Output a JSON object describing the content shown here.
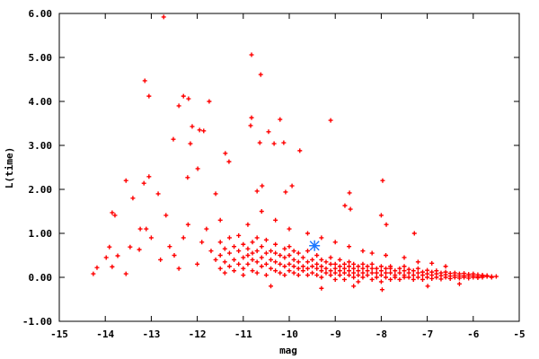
{
  "chart_data": {
    "type": "scatter",
    "title": "",
    "xlabel": "mag",
    "ylabel": "L(time)",
    "xlim": [
      -15,
      -5
    ],
    "ylim": [
      -1,
      6
    ],
    "grid": false,
    "x_ticks": [
      "-15",
      "-14",
      "-13",
      "-12",
      "-11",
      "-10",
      "-9",
      "-8",
      "-7",
      "-6",
      "-5"
    ],
    "y_ticks": [
      "-1.00",
      "0.00",
      "1.00",
      "2.00",
      "3.00",
      "4.00",
      "5.00",
      "6.00"
    ],
    "colors": {
      "main": "#ff0000",
      "highlight": "#1e78ff",
      "axis": "#000000"
    },
    "series": [
      {
        "marker": "plus",
        "color": "#ff0000",
        "points": [
          [
            -12.73,
            5.92
          ],
          [
            -13.14,
            4.47
          ],
          [
            -13.05,
            4.12
          ],
          [
            -10.82,
            5.06
          ],
          [
            -10.62,
            4.61
          ],
          [
            -12.3,
            4.12
          ],
          [
            -12.19,
            4.06
          ],
          [
            -12.4,
            3.9
          ],
          [
            -11.74,
            4.0
          ],
          [
            -12.52,
            3.14
          ],
          [
            -10.82,
            3.63
          ],
          [
            -10.84,
            3.45
          ],
          [
            -10.2,
            3.59
          ],
          [
            -10.45,
            3.31
          ],
          [
            -10.64,
            3.06
          ],
          [
            -10.33,
            3.04
          ],
          [
            -10.12,
            3.06
          ],
          [
            -9.77,
            2.88
          ],
          [
            -9.1,
            3.57
          ],
          [
            -12.11,
            3.43
          ],
          [
            -11.95,
            3.35
          ],
          [
            -11.86,
            3.33
          ],
          [
            -12.15,
            3.04
          ],
          [
            -11.31,
            2.63
          ],
          [
            -11.39,
            2.82
          ],
          [
            -11.99,
            2.47
          ],
          [
            -7.97,
            2.2
          ],
          [
            -13.05,
            2.29
          ],
          [
            -13.16,
            2.14
          ],
          [
            -12.21,
            2.27
          ],
          [
            -13.55,
            2.2
          ],
          [
            -13.4,
            1.8
          ],
          [
            -13.85,
            1.47
          ],
          [
            -13.79,
            1.41
          ],
          [
            -12.85,
            1.9
          ],
          [
            -12.68,
            1.41
          ],
          [
            -11.6,
            1.9
          ],
          [
            -10.7,
            1.96
          ],
          [
            -10.59,
            2.08
          ],
          [
            -9.94,
            2.08
          ],
          [
            -10.08,
            1.94
          ],
          [
            -8.69,
            1.92
          ],
          [
            -8.79,
            1.63
          ],
          [
            -8.67,
            1.55
          ],
          [
            -8.0,
            1.41
          ],
          [
            -7.89,
            1.2
          ],
          [
            -7.28,
            1.0
          ],
          [
            -14.26,
            0.08
          ],
          [
            -14.18,
            0.22
          ],
          [
            -13.98,
            0.45
          ],
          [
            -13.91,
            0.69
          ],
          [
            -13.85,
            0.24
          ],
          [
            -13.55,
            0.08
          ],
          [
            -13.73,
            0.49
          ],
          [
            -13.46,
            0.69
          ],
          [
            -13.24,
            1.1
          ],
          [
            -13.11,
            1.1
          ],
          [
            -13.26,
            0.63
          ],
          [
            -12.5,
            0.5
          ],
          [
            -12.3,
            0.9
          ],
          [
            -12.0,
            0.3
          ],
          [
            -11.8,
            1.1
          ],
          [
            -11.7,
            0.6
          ],
          [
            -12.2,
            1.2
          ],
          [
            -11.9,
            0.8
          ],
          [
            -12.6,
            0.7
          ],
          [
            -12.8,
            0.4
          ],
          [
            -13.0,
            0.9
          ],
          [
            -12.4,
            0.2
          ],
          [
            -11.6,
            0.4
          ],
          [
            -11.5,
            1.3
          ],
          [
            -10.9,
            1.2
          ],
          [
            -10.6,
            1.5
          ],
          [
            -10.3,
            1.3
          ],
          [
            -10.0,
            1.1
          ],
          [
            -9.6,
            1.0
          ],
          [
            -9.3,
            0.9
          ],
          [
            -9.0,
            0.8
          ],
          [
            -8.7,
            0.7
          ],
          [
            -8.4,
            0.6
          ],
          [
            -8.2,
            0.55
          ],
          [
            -7.9,
            0.5
          ],
          [
            -7.5,
            0.45
          ],
          [
            -7.2,
            0.35
          ],
          [
            -6.9,
            0.32
          ],
          [
            -6.6,
            0.25
          ],
          [
            -9.3,
            -0.25
          ],
          [
            -7.98,
            -0.28
          ],
          [
            -6.99,
            -0.2
          ],
          [
            -6.3,
            -0.15
          ],
          [
            -10.4,
            -0.2
          ],
          [
            -8.6,
            -0.2
          ],
          [
            -11.5,
            0.5
          ],
          [
            -11.5,
            0.2
          ],
          [
            -11.5,
            0.8
          ],
          [
            -11.4,
            0.35
          ],
          [
            -11.4,
            0.65
          ],
          [
            -11.4,
            0.1
          ],
          [
            -11.3,
            0.55
          ],
          [
            -11.3,
            0.25
          ],
          [
            -11.3,
            0.9
          ],
          [
            -11.2,
            0.4
          ],
          [
            -11.2,
            0.7
          ],
          [
            -11.2,
            0.15
          ],
          [
            -11.1,
            0.3
          ],
          [
            -11.1,
            0.6
          ],
          [
            -11.1,
            0.95
          ],
          [
            -11.0,
            0.45
          ],
          [
            -11.0,
            0.2
          ],
          [
            -11.0,
            0.75
          ],
          [
            -11.0,
            0.05
          ],
          [
            -10.9,
            0.5
          ],
          [
            -10.9,
            0.3
          ],
          [
            -10.9,
            0.65
          ],
          [
            -10.8,
            0.4
          ],
          [
            -10.8,
            0.15
          ],
          [
            -10.8,
            0.8
          ],
          [
            -10.8,
            0.55
          ],
          [
            -10.7,
            0.35
          ],
          [
            -10.7,
            0.6
          ],
          [
            -10.7,
            0.1
          ],
          [
            -10.7,
            0.9
          ],
          [
            -10.6,
            0.45
          ],
          [
            -10.6,
            0.25
          ],
          [
            -10.6,
            0.7
          ],
          [
            -10.5,
            0.3
          ],
          [
            -10.5,
            0.55
          ],
          [
            -10.5,
            0.05
          ],
          [
            -10.5,
            0.85
          ],
          [
            -10.4,
            0.4
          ],
          [
            -10.4,
            0.2
          ],
          [
            -10.4,
            0.6
          ],
          [
            -10.3,
            0.35
          ],
          [
            -10.3,
            0.15
          ],
          [
            -10.3,
            0.55
          ],
          [
            -10.3,
            0.75
          ],
          [
            -10.2,
            0.3
          ],
          [
            -10.2,
            0.5
          ],
          [
            -10.2,
            0.1
          ],
          [
            -10.1,
            0.25
          ],
          [
            -10.1,
            0.45
          ],
          [
            -10.1,
            0.65
          ],
          [
            -10.1,
            0.05
          ],
          [
            -10.0,
            0.3
          ],
          [
            -10.0,
            0.15
          ],
          [
            -10.0,
            0.5
          ],
          [
            -10.0,
            0.7
          ],
          [
            -9.9,
            0.25
          ],
          [
            -9.9,
            0.4
          ],
          [
            -9.9,
            0.1
          ],
          [
            -9.9,
            0.6
          ],
          [
            -9.8,
            0.2
          ],
          [
            -9.8,
            0.35
          ],
          [
            -9.8,
            0.05
          ],
          [
            -9.8,
            0.55
          ],
          [
            -9.7,
            0.25
          ],
          [
            -9.7,
            0.15
          ],
          [
            -9.7,
            0.45
          ],
          [
            -9.6,
            0.2
          ],
          [
            -9.6,
            0.35
          ],
          [
            -9.6,
            0.05
          ],
          [
            -9.6,
            0.6
          ],
          [
            -9.5,
            0.25
          ],
          [
            -9.5,
            0.1
          ],
          [
            -9.5,
            0.4
          ],
          [
            -9.4,
            0.2
          ],
          [
            -9.4,
            0.3
          ],
          [
            -9.4,
            0.05
          ],
          [
            -9.4,
            0.5
          ],
          [
            -9.3,
            0.15
          ],
          [
            -9.3,
            0.25
          ],
          [
            -9.3,
            0.4
          ],
          [
            -9.3,
            0.0
          ],
          [
            -9.2,
            0.2
          ],
          [
            -9.2,
            0.1
          ],
          [
            -9.2,
            0.35
          ],
          [
            -9.1,
            0.15
          ],
          [
            -9.1,
            0.3
          ],
          [
            -9.1,
            0.05
          ],
          [
            -9.1,
            0.45
          ],
          [
            -9.0,
            0.2
          ],
          [
            -9.0,
            0.1
          ],
          [
            -9.0,
            0.3
          ],
          [
            -9.0,
            -0.05
          ],
          [
            -8.9,
            0.15
          ],
          [
            -8.9,
            0.25
          ],
          [
            -8.9,
            0.05
          ],
          [
            -8.9,
            0.4
          ],
          [
            -8.8,
            0.2
          ],
          [
            -8.8,
            0.1
          ],
          [
            -8.8,
            0.3
          ],
          [
            -8.8,
            -0.05
          ],
          [
            -8.7,
            0.15
          ],
          [
            -8.7,
            0.05
          ],
          [
            -8.7,
            0.25
          ],
          [
            -8.7,
            0.35
          ],
          [
            -8.6,
            0.1
          ],
          [
            -8.6,
            0.2
          ],
          [
            -8.6,
            0.0
          ],
          [
            -8.6,
            0.3
          ],
          [
            -8.5,
            0.15
          ],
          [
            -8.5,
            0.05
          ],
          [
            -8.5,
            0.25
          ],
          [
            -8.5,
            -0.1
          ],
          [
            -8.4,
            0.1
          ],
          [
            -8.4,
            0.2
          ],
          [
            -8.4,
            0.0
          ],
          [
            -8.4,
            0.3
          ],
          [
            -8.3,
            0.15
          ],
          [
            -8.3,
            0.05
          ],
          [
            -8.3,
            0.25
          ],
          [
            -8.2,
            0.1
          ],
          [
            -8.2,
            0.2
          ],
          [
            -8.2,
            -0.05
          ],
          [
            -8.2,
            0.3
          ],
          [
            -8.1,
            0.1
          ],
          [
            -8.1,
            0.0
          ],
          [
            -8.1,
            0.2
          ],
          [
            -8.0,
            0.15
          ],
          [
            -8.0,
            0.05
          ],
          [
            -8.0,
            0.25
          ],
          [
            -8.0,
            -0.1
          ],
          [
            -7.9,
            0.1
          ],
          [
            -7.9,
            0.0
          ],
          [
            -7.9,
            0.2
          ],
          [
            -7.8,
            0.1
          ],
          [
            -7.8,
            0.2
          ],
          [
            -7.8,
            -0.05
          ],
          [
            -7.8,
            0.25
          ],
          [
            -7.7,
            0.05
          ],
          [
            -7.7,
            0.15
          ],
          [
            -7.7,
            0.0
          ],
          [
            -7.6,
            0.1
          ],
          [
            -7.6,
            0.2
          ],
          [
            -7.6,
            -0.05
          ],
          [
            -7.5,
            0.05
          ],
          [
            -7.5,
            0.15
          ],
          [
            -7.5,
            0.0
          ],
          [
            -7.5,
            0.25
          ],
          [
            -7.4,
            0.1
          ],
          [
            -7.4,
            0.0
          ],
          [
            -7.4,
            0.18
          ],
          [
            -7.3,
            0.05
          ],
          [
            -7.3,
            0.15
          ],
          [
            -7.3,
            -0.05
          ],
          [
            -7.2,
            0.1
          ],
          [
            -7.2,
            0.0
          ],
          [
            -7.2,
            0.2
          ],
          [
            -7.1,
            0.05
          ],
          [
            -7.1,
            0.12
          ],
          [
            -7.1,
            -0.05
          ],
          [
            -7.0,
            0.08
          ],
          [
            -7.0,
            0.0
          ],
          [
            -7.0,
            0.16
          ],
          [
            -6.9,
            0.05
          ],
          [
            -6.9,
            0.12
          ],
          [
            -6.9,
            -0.03
          ],
          [
            -6.8,
            0.08
          ],
          [
            -6.8,
            0.0
          ],
          [
            -6.8,
            0.15
          ],
          [
            -6.7,
            0.04
          ],
          [
            -6.7,
            0.1
          ],
          [
            -6.7,
            -0.04
          ],
          [
            -6.6,
            0.06
          ],
          [
            -6.6,
            0.0
          ],
          [
            -6.6,
            0.12
          ],
          [
            -6.5,
            0.03
          ],
          [
            -6.5,
            0.09
          ],
          [
            -6.5,
            -0.03
          ],
          [
            -6.4,
            0.05
          ],
          [
            -6.4,
            0.0
          ],
          [
            -6.4,
            0.1
          ],
          [
            -6.3,
            0.03
          ],
          [
            -6.3,
            0.08
          ],
          [
            -6.3,
            -0.02
          ],
          [
            -6.2,
            0.04
          ],
          [
            -6.2,
            0.0
          ],
          [
            -6.2,
            0.09
          ],
          [
            -6.1,
            0.03
          ],
          [
            -6.1,
            0.07
          ],
          [
            -6.1,
            -0.02
          ],
          [
            -6.0,
            0.04
          ],
          [
            -6.0,
            0.0
          ],
          [
            -6.0,
            0.08
          ],
          [
            -5.9,
            0.02
          ],
          [
            -5.9,
            0.06
          ],
          [
            -5.9,
            -0.01
          ],
          [
            -5.8,
            0.03
          ],
          [
            -5.8,
            0.0
          ],
          [
            -5.8,
            0.05
          ],
          [
            -5.7,
            0.02
          ],
          [
            -5.7,
            0.04
          ],
          [
            -5.6,
            0.02
          ],
          [
            -5.6,
            0.0
          ],
          [
            -5.5,
            0.02
          ]
        ]
      },
      {
        "marker": "star",
        "color": "#1e78ff",
        "points": [
          [
            -9.45,
            0.72
          ]
        ]
      }
    ]
  }
}
